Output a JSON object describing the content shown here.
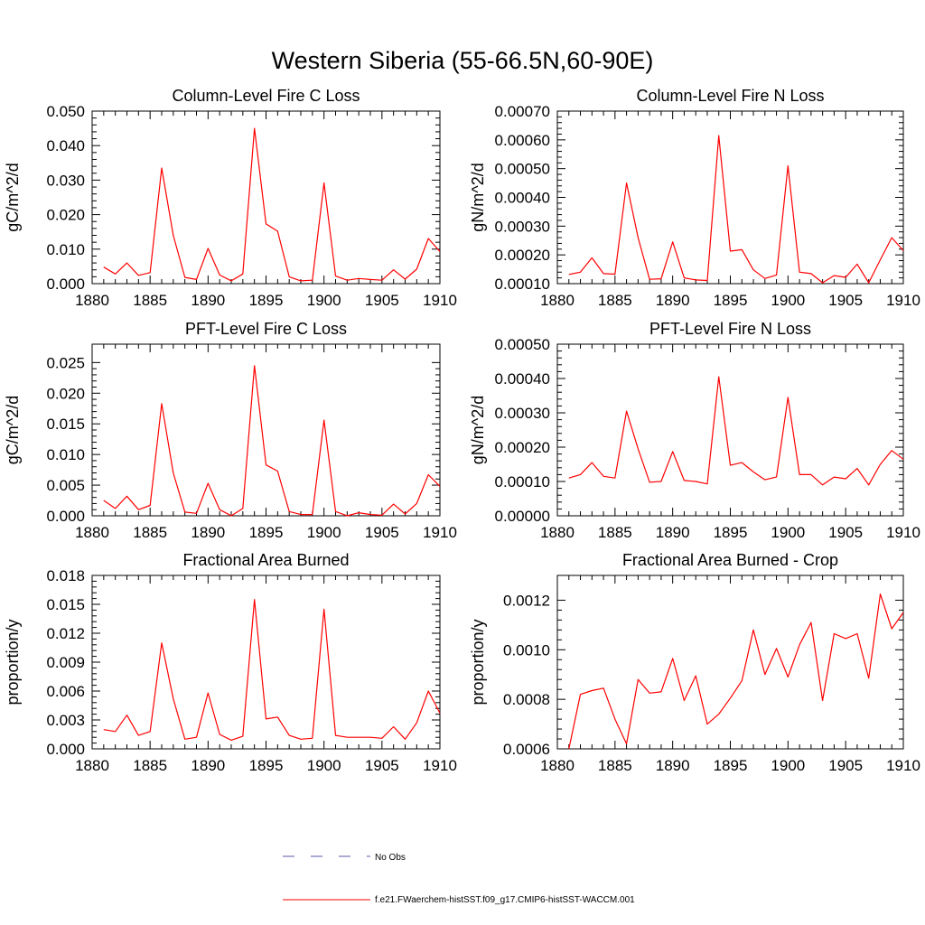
{
  "figure": {
    "title": "Western Siberia (55-66.5N,60-90E)",
    "legend": [
      {
        "label": "No Obs",
        "color": "#5555aa",
        "style": "dashed"
      },
      {
        "label": "f.e21.FWaerchem-histSST.f09_g17.CMIP6-histSST-WACCM.001",
        "color": "#ff0000",
        "style": "solid"
      }
    ]
  },
  "chart_data": [
    {
      "type": "line",
      "title": "Column-Level Fire C Loss",
      "xlabel": "",
      "ylabel": "gC/m^2/d",
      "xlim": [
        1880,
        1910
      ],
      "ylim": [
        0,
        0.05
      ],
      "xticks": [
        "1880",
        "1885",
        "1890",
        "1895",
        "1900",
        "1905",
        "1910"
      ],
      "yticks": [
        "0.000",
        "0.010",
        "0.020",
        "0.030",
        "0.040",
        "0.050"
      ],
      "yticks_num": [
        0,
        0.01,
        0.02,
        0.03,
        0.04,
        0.05
      ],
      "grid": false,
      "x": [
        1881,
        1882,
        1883,
        1884,
        1885,
        1886,
        1887,
        1888,
        1889,
        1890,
        1891,
        1892,
        1893,
        1894,
        1895,
        1896,
        1897,
        1898,
        1899,
        1900,
        1901,
        1902,
        1903,
        1904,
        1905,
        1906,
        1907,
        1908,
        1909,
        1910
      ],
      "series": [
        {
          "color": "#ff0000",
          "values": [
            0.0048,
            0.0028,
            0.006,
            0.0024,
            0.0032,
            0.0335,
            0.014,
            0.0018,
            0.0012,
            0.0102,
            0.0025,
            0.0008,
            0.0028,
            0.045,
            0.0173,
            0.0152,
            0.002,
            0.0008,
            0.001,
            0.0292,
            0.0022,
            0.001,
            0.0015,
            0.0012,
            0.001,
            0.004,
            0.0013,
            0.0042,
            0.0131,
            0.0093
          ]
        }
      ]
    },
    {
      "type": "line",
      "title": "Column-Level Fire N Loss",
      "xlabel": "",
      "ylabel": "gN/m^2/d",
      "xlim": [
        1880,
        1910
      ],
      "ylim": [
        0.0001,
        0.0007
      ],
      "xticks": [
        "1880",
        "1885",
        "1890",
        "1895",
        "1900",
        "1905",
        "1910"
      ],
      "yticks": [
        "0.00010",
        "0.00020",
        "0.00030",
        "0.00040",
        "0.00050",
        "0.00060",
        "0.00070"
      ],
      "yticks_num": [
        0.0001,
        0.0002,
        0.0003,
        0.0004,
        0.0005,
        0.0006,
        0.0007
      ],
      "grid": false,
      "x": [
        1881,
        1882,
        1883,
        1884,
        1885,
        1886,
        1887,
        1888,
        1889,
        1890,
        1891,
        1892,
        1893,
        1894,
        1895,
        1896,
        1897,
        1898,
        1899,
        1900,
        1901,
        1902,
        1903,
        1904,
        1905,
        1906,
        1907,
        1908,
        1909,
        1910
      ],
      "series": [
        {
          "color": "#ff0000",
          "values": [
            0.000132,
            0.00014,
            0.00019,
            0.000135,
            0.000133,
            0.00045,
            0.00026,
            0.000115,
            0.000117,
            0.000245,
            0.00012,
            0.000113,
            0.000111,
            0.000615,
            0.000213,
            0.000218,
            0.000148,
            0.000118,
            0.00013,
            0.00051,
            0.00014,
            0.000135,
            0.000103,
            0.000128,
            0.000122,
            0.000168,
            0.000103,
            0.000183,
            0.00026,
            0.000215
          ]
        }
      ]
    },
    {
      "type": "line",
      "title": "PFT-Level Fire C Loss",
      "xlabel": "",
      "ylabel": "gC/m^2/d",
      "xlim": [
        1880,
        1910
      ],
      "ylim": [
        0,
        0.028
      ],
      "xticks": [
        "1880",
        "1885",
        "1890",
        "1895",
        "1900",
        "1905",
        "1910"
      ],
      "yticks": [
        "0.000",
        "0.005",
        "0.010",
        "0.015",
        "0.020",
        "0.025"
      ],
      "yticks_num": [
        0,
        0.005,
        0.01,
        0.015,
        0.02,
        0.025
      ],
      "grid": false,
      "x": [
        1881,
        1882,
        1883,
        1884,
        1885,
        1886,
        1887,
        1888,
        1889,
        1890,
        1891,
        1892,
        1893,
        1894,
        1895,
        1896,
        1897,
        1898,
        1899,
        1900,
        1901,
        1902,
        1903,
        1904,
        1905,
        1906,
        1907,
        1908,
        1909,
        1910
      ],
      "series": [
        {
          "color": "#ff0000",
          "values": [
            0.0025,
            0.0012,
            0.0032,
            0.001,
            0.0017,
            0.0183,
            0.007,
            0.0006,
            0.0004,
            0.0053,
            0.001,
            0.0,
            0.0012,
            0.0245,
            0.0083,
            0.0073,
            0.0007,
            0.0002,
            0.0002,
            0.0156,
            0.0007,
            0.0,
            0.0005,
            0.0002,
            0.0001,
            0.0019,
            0.0003,
            0.002,
            0.0067,
            0.0048
          ]
        }
      ]
    },
    {
      "type": "line",
      "title": "PFT-Level Fire N Loss",
      "xlabel": "",
      "ylabel": "gN/m^2/d",
      "xlim": [
        1880,
        1910
      ],
      "ylim": [
        0,
        0.0005
      ],
      "xticks": [
        "1880",
        "1885",
        "1890",
        "1895",
        "1900",
        "1905",
        "1910"
      ],
      "yticks": [
        "0.00000",
        "0.00010",
        "0.00020",
        "0.00030",
        "0.00040",
        "0.00050"
      ],
      "yticks_num": [
        0,
        0.0001,
        0.0002,
        0.0003,
        0.0004,
        0.0005
      ],
      "grid": false,
      "x": [
        1881,
        1882,
        1883,
        1884,
        1885,
        1886,
        1887,
        1888,
        1889,
        1890,
        1891,
        1892,
        1893,
        1894,
        1895,
        1896,
        1897,
        1898,
        1899,
        1900,
        1901,
        1902,
        1903,
        1904,
        1905,
        1906,
        1907,
        1908,
        1909,
        1910
      ],
      "series": [
        {
          "color": "#ff0000",
          "values": [
            0.00011,
            0.00012,
            0.000155,
            0.000115,
            0.00011,
            0.000305,
            0.000195,
            9.8e-05,
            0.0001,
            0.000187,
            0.000103,
            0.0001,
            9.3e-05,
            0.000405,
            0.000147,
            0.000155,
            0.000128,
            0.000105,
            0.000113,
            0.000345,
            0.00012,
            0.00012,
            9e-05,
            0.000113,
            0.000108,
            0.000138,
            9e-05,
            0.00015,
            0.00019,
            0.000165
          ]
        }
      ]
    },
    {
      "type": "line",
      "title": "Fractional Area Burned",
      "xlabel": "",
      "ylabel": "proportion/y",
      "xlim": [
        1880,
        1910
      ],
      "ylim": [
        0,
        0.018
      ],
      "xticks": [
        "1880",
        "1885",
        "1890",
        "1895",
        "1900",
        "1905",
        "1910"
      ],
      "yticks": [
        "0.000",
        "0.003",
        "0.006",
        "0.009",
        "0.012",
        "0.015",
        "0.018"
      ],
      "yticks_num": [
        0,
        0.003,
        0.006,
        0.009,
        0.012,
        0.015,
        0.018
      ],
      "grid": false,
      "x": [
        1881,
        1882,
        1883,
        1884,
        1885,
        1886,
        1887,
        1888,
        1889,
        1890,
        1891,
        1892,
        1893,
        1894,
        1895,
        1896,
        1897,
        1898,
        1899,
        1900,
        1901,
        1902,
        1903,
        1904,
        1905,
        1906,
        1907,
        1908,
        1909,
        1910
      ],
      "series": [
        {
          "color": "#ff0000",
          "values": [
            0.002,
            0.0018,
            0.0035,
            0.0014,
            0.0018,
            0.011,
            0.0052,
            0.001,
            0.0012,
            0.0058,
            0.0015,
            0.0009,
            0.0013,
            0.0155,
            0.0031,
            0.0033,
            0.0014,
            0.001,
            0.0011,
            0.0145,
            0.0014,
            0.0012,
            0.0012,
            0.0012,
            0.0011,
            0.0023,
            0.001,
            0.0027,
            0.006,
            0.0037
          ]
        }
      ]
    },
    {
      "type": "line",
      "title": "Fractional Area Burned - Crop",
      "xlabel": "",
      "ylabel": "proportion/y",
      "xlim": [
        1880,
        1910
      ],
      "ylim": [
        0.0006,
        0.0013
      ],
      "xticks": [
        "1880",
        "1885",
        "1890",
        "1895",
        "1900",
        "1905",
        "1910"
      ],
      "yticks": [
        "0.0006",
        "0.0008",
        "0.0010",
        "0.0012"
      ],
      "yticks_num": [
        0.0006,
        0.0008,
        0.001,
        0.0012
      ],
      "grid": false,
      "x": [
        1881,
        1882,
        1883,
        1884,
        1885,
        1886,
        1887,
        1888,
        1889,
        1890,
        1891,
        1892,
        1893,
        1894,
        1895,
        1896,
        1897,
        1898,
        1899,
        1900,
        1901,
        1902,
        1903,
        1904,
        1905,
        1906,
        1907,
        1908,
        1909,
        1910
      ],
      "series": [
        {
          "color": "#ff0000",
          "values": [
            0.0006,
            0.00082,
            0.000835,
            0.000845,
            0.00072,
            0.00062,
            0.00088,
            0.000825,
            0.00083,
            0.000965,
            0.000795,
            0.000895,
            0.0007,
            0.00074,
            0.000805,
            0.000875,
            0.00108,
            0.0009,
            0.001005,
            0.00089,
            0.00102,
            0.00111,
            0.000795,
            0.001065,
            0.001045,
            0.001065,
            0.000885,
            0.001225,
            0.001085,
            0.00115
          ]
        }
      ]
    }
  ]
}
